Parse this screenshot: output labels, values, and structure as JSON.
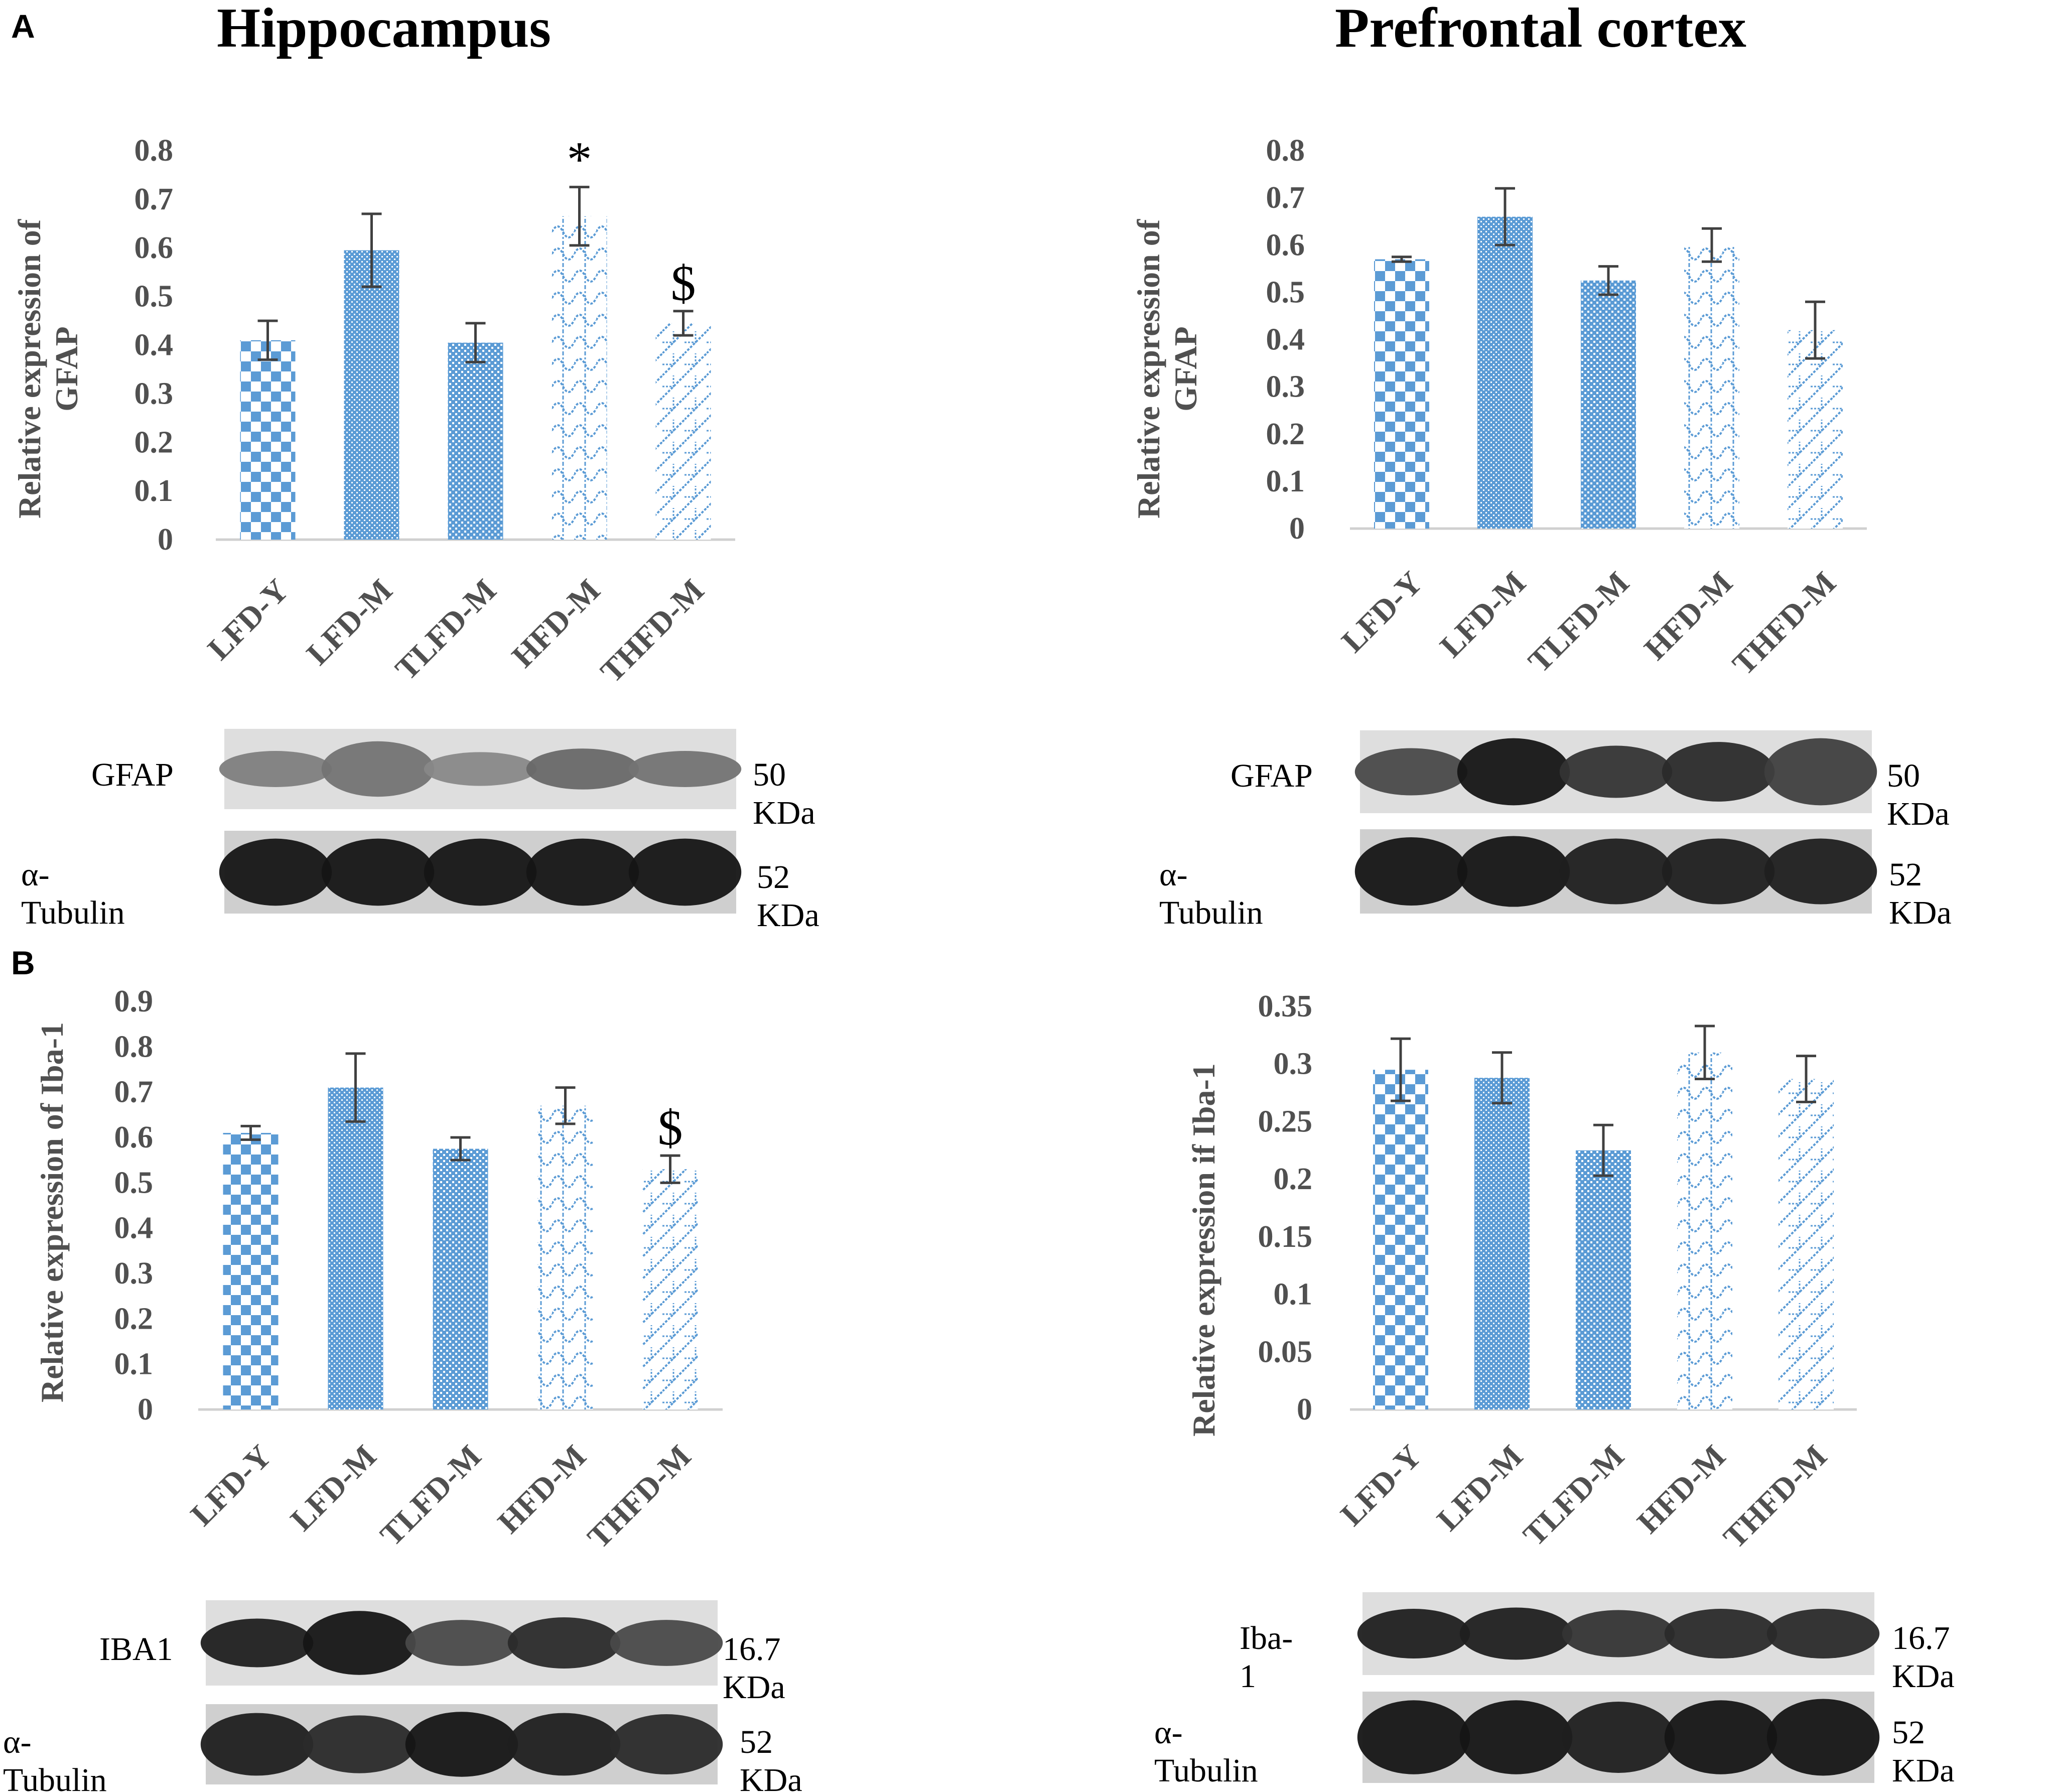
{
  "panels": {
    "A": "A",
    "B": "B"
  },
  "titles": {
    "left": "Hippocampus",
    "right": "Prefrontal cortex"
  },
  "colors": {
    "bar_blue": "#5b9bd5",
    "axis": "#d0d0d0",
    "text_gray": "#505050",
    "error": "#404040"
  },
  "patterns": [
    "checkerboard",
    "dense-dots",
    "small-grid",
    "wavy-lattice",
    "diagonal-steps"
  ],
  "chart_data": [
    {
      "id": "A-left",
      "type": "bar",
      "categories": [
        "LFD-Y",
        "LFD-M",
        "TLFD-M",
        "HFD-M",
        "THFD-M"
      ],
      "values": [
        0.41,
        0.595,
        0.405,
        0.665,
        0.445
      ],
      "errors": [
        0.04,
        0.075,
        0.04,
        0.06,
        0.025
      ],
      "annotations": [
        "",
        "",
        "",
        "*",
        "$"
      ],
      "ylabel": [
        "Relative expression of",
        "GFAP"
      ],
      "ylim": [
        0,
        0.8
      ],
      "yticks": [
        0,
        0.1,
        0.2,
        0.3,
        0.4,
        0.5,
        0.6,
        0.7,
        0.8
      ],
      "ytick_labels": [
        "0",
        "0.1",
        "0.2",
        "0.3",
        "0.4",
        "0.5",
        "0.6",
        "0.7",
        "0.8"
      ],
      "grid": false
    },
    {
      "id": "A-right",
      "type": "bar",
      "categories": [
        "LFD-Y",
        "LFD-M",
        "TLFD-M",
        "HFD-M",
        "THFD-M"
      ],
      "values": [
        0.57,
        0.66,
        0.525,
        0.6,
        0.42
      ],
      "errors": [
        0.005,
        0.06,
        0.03,
        0.035,
        0.06
      ],
      "annotations": [
        "",
        "",
        "",
        "",
        ""
      ],
      "ylabel": [
        "Relative expression of",
        "GFAP"
      ],
      "ylim": [
        0,
        0.8
      ],
      "yticks": [
        0,
        0.1,
        0.2,
        0.3,
        0.4,
        0.5,
        0.6,
        0.7,
        0.8
      ],
      "ytick_labels": [
        "0",
        "0.1",
        "0.2",
        "0.3",
        "0.4",
        "0.5",
        "0.6",
        "0.7",
        "0.8"
      ],
      "grid": false
    },
    {
      "id": "B-left",
      "type": "bar",
      "categories": [
        "LFD-Y",
        "LFD-M",
        "TLFD-M",
        "HFD-M",
        "THFD-M"
      ],
      "values": [
        0.61,
        0.71,
        0.575,
        0.67,
        0.53
      ],
      "errors": [
        0.015,
        0.075,
        0.025,
        0.04,
        0.03
      ],
      "annotations": [
        "",
        "",
        "",
        "",
        "$"
      ],
      "ylabel": [
        "Relative expression of Iba-1"
      ],
      "ylim": [
        0,
        0.9
      ],
      "yticks": [
        0,
        0.1,
        0.2,
        0.3,
        0.4,
        0.5,
        0.6,
        0.7,
        0.8,
        0.9
      ],
      "ytick_labels": [
        "0",
        "0.1",
        "0.2",
        "0.3",
        "0.4",
        "0.5",
        "0.6",
        "0.7",
        "0.8",
        "0.9"
      ],
      "grid": false
    },
    {
      "id": "B-right",
      "type": "bar",
      "categories": [
        "LFD-Y",
        "LFD-M",
        "TLFD-M",
        "HFD-M",
        "THFD-M"
      ],
      "values": [
        0.295,
        0.288,
        0.225,
        0.31,
        0.287
      ],
      "errors": [
        0.027,
        0.022,
        0.022,
        0.023,
        0.02
      ],
      "annotations": [
        "",
        "",
        "",
        "",
        ""
      ],
      "ylabel": [
        "Relative expression if Iba-1"
      ],
      "ylim": [
        0,
        0.35
      ],
      "yticks": [
        0,
        0.05,
        0.1,
        0.15,
        0.2,
        0.25,
        0.3,
        0.35
      ],
      "ytick_labels": [
        "0",
        "0.05",
        "0.1",
        "0.15",
        "0.2",
        "0.25",
        "0.3",
        "0.35"
      ],
      "grid": false
    }
  ],
  "blots": {
    "A_left": {
      "rows": [
        {
          "label": "GFAP",
          "kda": "50 KDa",
          "bands": [
            [
              0.45,
              0.35
            ],
            [
              0.5,
              0.75
            ],
            [
              0.4,
              0.3
            ],
            [
              0.55,
              0.45
            ],
            [
              0.5,
              0.35
            ]
          ]
        },
        {
          "label": "α-Tubulin",
          "kda": "52 KDa",
          "bands": [
            [
              0.95,
              0.95
            ],
            [
              0.95,
              0.95
            ],
            [
              0.95,
              0.95
            ],
            [
              0.95,
              0.95
            ],
            [
              0.95,
              0.95
            ]
          ]
        }
      ]
    },
    "A_right": {
      "rows": [
        {
          "label": "GFAP",
          "kda": "50 KDa",
          "bands": [
            [
              0.7,
              0.55
            ],
            [
              0.95,
              0.95
            ],
            [
              0.8,
              0.65
            ],
            [
              0.85,
              0.8
            ],
            [
              0.75,
              0.95
            ]
          ]
        },
        {
          "label": "α-Tubulin",
          "kda": "52 KDa",
          "bands": [
            [
              0.95,
              0.95
            ],
            [
              0.95,
              1
            ],
            [
              0.9,
              0.9
            ],
            [
              0.9,
              0.9
            ],
            [
              0.9,
              0.9
            ]
          ]
        }
      ]
    },
    "B_left": {
      "rows": [
        {
          "label": "IBA1",
          "kda": "16.7 KDa",
          "bands": [
            [
              0.9,
              0.55
            ],
            [
              0.95,
              0.85
            ],
            [
              0.7,
              0.5
            ],
            [
              0.85,
              0.6
            ],
            [
              0.7,
              0.5
            ]
          ]
        },
        {
          "label": "α-Tubulin",
          "kda": "52 KDa",
          "bands": [
            [
              0.9,
              0.9
            ],
            [
              0.85,
              0.8
            ],
            [
              0.95,
              0.95
            ],
            [
              0.9,
              0.9
            ],
            [
              0.85,
              0.85
            ]
          ]
        }
      ]
    },
    "B_right": {
      "rows": [
        {
          "label": "Iba-1",
          "kda": "16.7 KDa",
          "bands": [
            [
              0.9,
              0.6
            ],
            [
              0.9,
              0.65
            ],
            [
              0.8,
              0.55
            ],
            [
              0.85,
              0.6
            ],
            [
              0.85,
              0.6
            ]
          ]
        },
        {
          "label": "α-Tubulin",
          "kda": "52 KDa",
          "bands": [
            [
              0.95,
              0.95
            ],
            [
              0.95,
              0.95
            ],
            [
              0.9,
              0.9
            ],
            [
              0.95,
              0.95
            ],
            [
              0.95,
              1
            ]
          ]
        }
      ]
    }
  }
}
